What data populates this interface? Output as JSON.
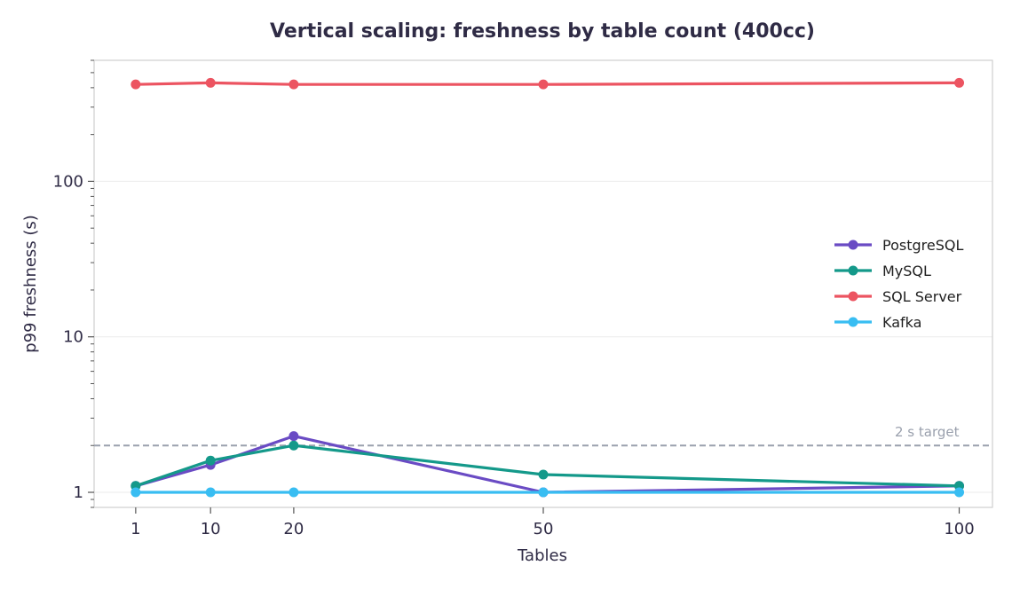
{
  "chart_data": {
    "type": "line",
    "title": "Vertical scaling: freshness by table count (400cc)",
    "xlabel": "Tables",
    "ylabel": "p99 freshness (s)",
    "y_scale": "log",
    "ylim": [
      0.8,
      600
    ],
    "xlim": [
      -4,
      104
    ],
    "x": [
      1,
      10,
      20,
      50,
      100
    ],
    "x_ticks": [
      1,
      10,
      20,
      50,
      100
    ],
    "y_ticks": [
      1,
      10,
      100
    ],
    "grid": true,
    "legend_position": "center-right",
    "series": [
      {
        "name": "PostgreSQL",
        "color": "#6a4bc4",
        "values": [
          1.1,
          1.5,
          2.3,
          1.0,
          1.1
        ]
      },
      {
        "name": "MySQL",
        "color": "#14998a",
        "values": [
          1.1,
          1.6,
          2.0,
          1.3,
          1.1
        ]
      },
      {
        "name": "SQL Server",
        "color": "#ec5461",
        "values": [
          420,
          430,
          420,
          420,
          430
        ]
      },
      {
        "name": "Kafka",
        "color": "#38bdf2",
        "values": [
          1.0,
          1.0,
          1.0,
          1.0,
          1.0
        ]
      }
    ],
    "reference_line": {
      "value": 2,
      "label": "2 s target",
      "color": "#9aa0ad"
    }
  }
}
